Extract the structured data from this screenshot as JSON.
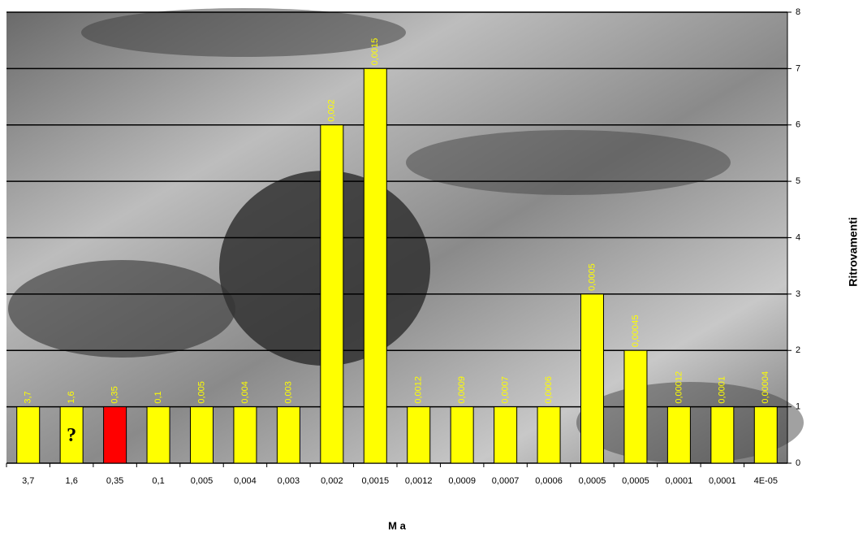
{
  "chart_data": {
    "type": "bar",
    "x_label": "M a",
    "y_label": "Ritrovamenti",
    "categories": [
      "3,7",
      "1,6",
      "0,35",
      "0,1",
      "0,005",
      "0,004",
      "0,003",
      "0,002",
      "0,0015",
      "0,0012",
      "0,0009",
      "0,0007",
      "0,0006",
      "0,0005",
      "0,0005",
      "0,0001",
      "0,0001",
      "4E-05"
    ],
    "values": [
      1,
      1,
      1,
      1,
      1,
      1,
      1,
      6,
      7,
      1,
      1,
      1,
      1,
      3,
      2,
      1,
      1,
      1
    ],
    "bar_labels": [
      "3,7",
      "1,6",
      "0,35",
      "0,1",
      "0,005",
      "0,004",
      "0,003",
      "0,002",
      "0,0015",
      "0,0012",
      "0,0009",
      "0,0007",
      "0,0006",
      "0,0005",
      "0,00045",
      "0,00012",
      "0,0001",
      "0,00004"
    ],
    "colors": [
      "#ffff00",
      "#ffff00",
      "#ff0000",
      "#ffff00",
      "#ffff00",
      "#ffff00",
      "#ffff00",
      "#ffff00",
      "#ffff00",
      "#ffff00",
      "#ffff00",
      "#ffff00",
      "#ffff00",
      "#ffff00",
      "#ffff00",
      "#ffff00",
      "#ffff00",
      "#ffff00"
    ],
    "annotation": "?",
    "ylim": [
      0,
      8
    ],
    "yticks": [
      0,
      1,
      2,
      3,
      4,
      5,
      6,
      7,
      8
    ],
    "grid": true,
    "y_axis_side": "right"
  }
}
